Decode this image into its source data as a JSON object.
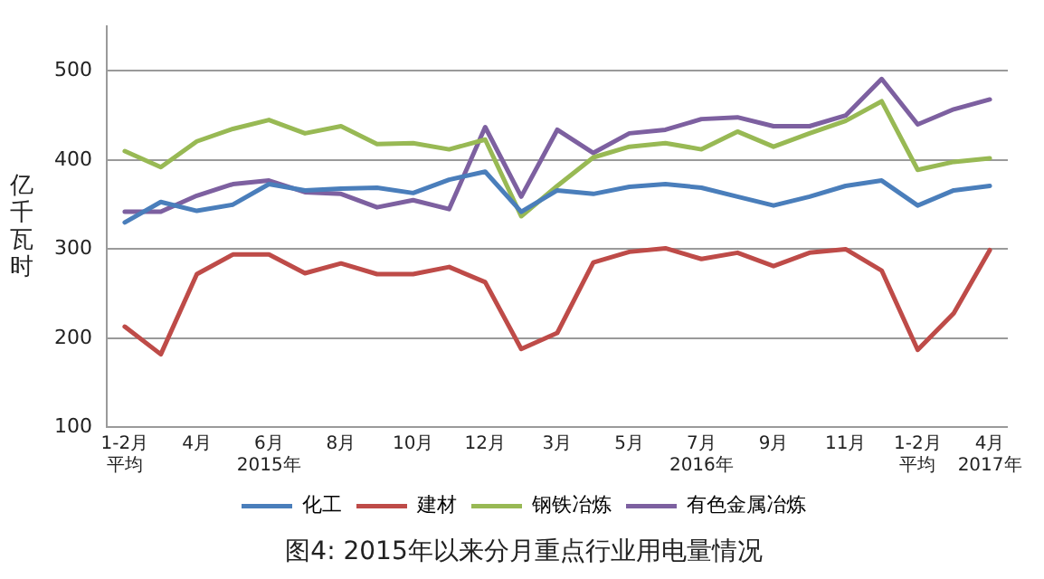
{
  "chart_data": {
    "type": "line",
    "title": "图4: 2015年以来分月重点行业用电量情况",
    "ylabel": "亿千瓦时",
    "categories": [
      "1-2月平均",
      null,
      "4月",
      null,
      "6月\n2015年",
      null,
      "8月",
      null,
      "10月",
      null,
      "12月",
      null,
      "3月",
      null,
      "5月",
      null,
      "7月\n2016年",
      null,
      "9月",
      null,
      "11月",
      null,
      "1-2月平均",
      null,
      "4月\n2017年"
    ],
    "series": [
      {
        "name": "化工",
        "color": "#4a7ebb",
        "values": [
          330,
          353,
          343,
          350,
          373,
          366,
          368,
          369,
          363,
          378,
          387,
          342,
          366,
          362,
          370,
          373,
          369,
          359,
          349,
          359,
          371,
          377,
          349,
          366,
          371
        ]
      },
      {
        "name": "建材",
        "color": "#be4b48",
        "values": [
          213,
          182,
          272,
          294,
          294,
          273,
          284,
          272,
          272,
          280,
          263,
          188,
          206,
          285,
          297,
          301,
          289,
          296,
          281,
          296,
          300,
          276,
          187,
          228,
          299
        ]
      },
      {
        "name": "钢铁冶炼",
        "color": "#98b954",
        "values": [
          410,
          392,
          421,
          435,
          445,
          430,
          438,
          418,
          419,
          412,
          423,
          337,
          371,
          403,
          415,
          419,
          412,
          432,
          415,
          430,
          444,
          466,
          389,
          398,
          402
        ]
      },
      {
        "name": "有色金属冶炼",
        "color": "#7d60a0",
        "values": [
          342,
          342,
          360,
          373,
          377,
          364,
          362,
          347,
          355,
          345,
          437,
          359,
          434,
          408,
          430,
          434,
          446,
          448,
          438,
          438,
          450,
          491,
          440,
          457,
          468
        ]
      }
    ],
    "ylim": [
      100,
      550
    ],
    "yticks": [
      100,
      200,
      300,
      400,
      500
    ],
    "grid": "y",
    "legend": "bottom",
    "marker": "none",
    "line_style": "solid"
  }
}
